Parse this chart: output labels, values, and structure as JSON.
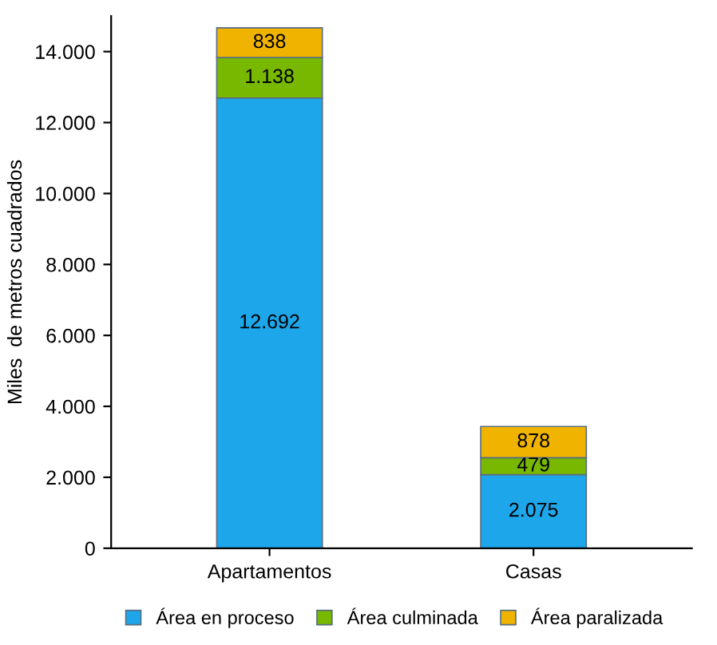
{
  "chart_data": {
    "type": "bar",
    "stacked": true,
    "ylabel": "Miles  de metros cuadrados",
    "categories": [
      "Apartamentos",
      "Casas"
    ],
    "series": [
      {
        "name": "Área en proceso",
        "color": "#1ea6ea",
        "values": [
          12692,
          2075
        ],
        "value_labels": [
          "12.692",
          "2.075"
        ]
      },
      {
        "name": "Área culminada",
        "color": "#78b800",
        "values": [
          1138,
          479
        ],
        "value_labels": [
          "1.138",
          "479"
        ]
      },
      {
        "name": "Área paralizada",
        "color": "#f0b400",
        "values": [
          838,
          878
        ],
        "value_labels": [
          "838",
          "878"
        ]
      }
    ],
    "ylim": [
      0,
      15000
    ],
    "yticks": [
      0,
      {
        "value": 2000,
        "label": "2.000"
      },
      {
        "value": 4000,
        "label": "4.000"
      },
      {
        "value": 6000,
        "label": "6.000"
      },
      {
        "value": 8000,
        "label": "8.000"
      },
      {
        "value": 10000,
        "label": "10.000"
      },
      {
        "value": 12000,
        "label": "12.000"
      },
      {
        "value": 14000,
        "label": "14.000"
      }
    ],
    "grid": false,
    "legend": "bottom"
  }
}
